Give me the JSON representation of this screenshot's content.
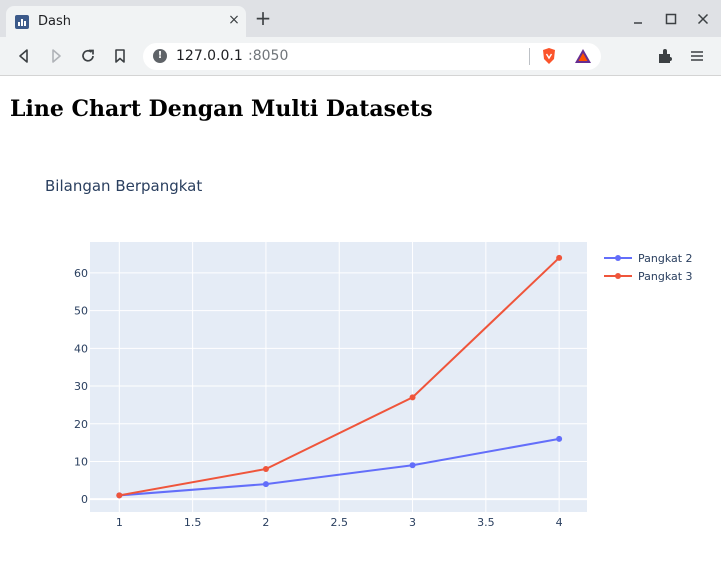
{
  "browser": {
    "tab_title": "Dash",
    "tab_close": "×",
    "new_tab": "+",
    "url_host": "127.0.0.1",
    "url_port": ":8050"
  },
  "page": {
    "heading": "Line Chart Dengan Multi Datasets",
    "chart_title": "Bilangan Berpangkat"
  },
  "colors": {
    "plot_bg": "#e5ecf6",
    "grid": "#ffffff",
    "series_1": "#636efa",
    "series_2": "#ef553b",
    "tick_text": "#2a3f5f"
  },
  "chart_data": {
    "type": "line",
    "title": "Bilangan Berpangkat",
    "x": [
      1,
      2,
      3,
      4
    ],
    "series": [
      {
        "name": "Pangkat 2",
        "values": [
          1,
          4,
          9,
          16
        ]
      },
      {
        "name": "Pangkat 3",
        "values": [
          1,
          8,
          27,
          64
        ]
      }
    ],
    "xticks": [
      1,
      1.5,
      2,
      2.5,
      3,
      3.5,
      4
    ],
    "xtick_labels": [
      "1",
      "1.5",
      "2",
      "2.5",
      "3",
      "3.5",
      "4"
    ],
    "yticks": [
      0,
      10,
      20,
      30,
      40,
      50,
      60
    ],
    "ytick_labels": [
      "0",
      "10",
      "20",
      "30",
      "40",
      "50",
      "60"
    ],
    "xlim": [
      0.8,
      4.19
    ],
    "ylim": [
      -3.4,
      68.2
    ],
    "grid": true,
    "legend_position": "top-right",
    "markers": true
  }
}
